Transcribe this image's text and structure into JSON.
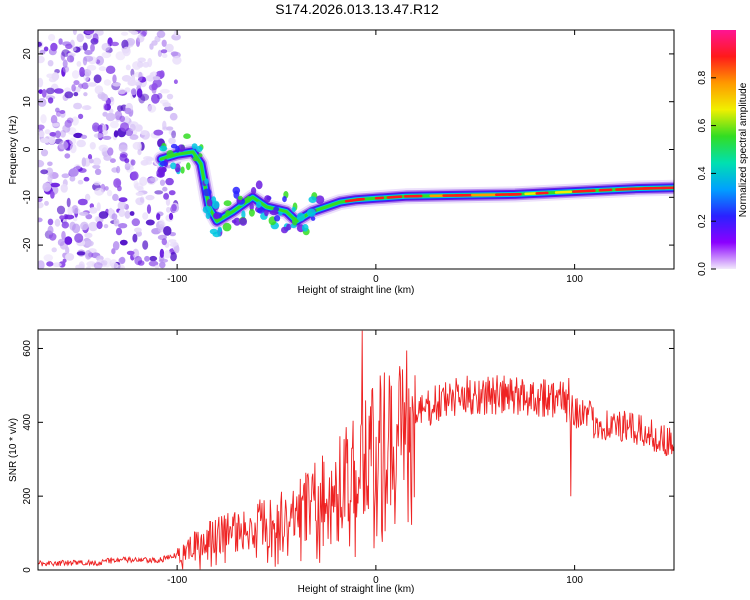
{
  "title": "S174.2026.013.13.47.R12",
  "chart_data": [
    {
      "type": "heatmap",
      "name": "spectrogram",
      "xlabel": "Height of straight line (km)",
      "ylabel": "Frequency (Hz)",
      "xlim": [
        -170,
        150
      ],
      "ylim": [
        -25,
        25
      ],
      "xticks": [
        -100,
        0,
        100
      ],
      "yticks": [
        -20,
        -10,
        0,
        10,
        20
      ],
      "colorbar": {
        "label": "Normalized spectral amplitude",
        "range": [
          0,
          1
        ],
        "ticks": [
          0.0,
          0.2,
          0.4,
          0.6,
          0.8
        ],
        "tick_labels": [
          "0.0",
          "0.2",
          "0.4",
          "0.6",
          "0.8"
        ],
        "colors": [
          "#f2e9fb",
          "#8b00ff",
          "#2a22ff",
          "#00a0ff",
          "#00e0b0",
          "#33dd22",
          "#f0f000",
          "#ff9900",
          "#ff1a1a",
          "#ff1493"
        ]
      },
      "noise_region_x": [
        -170,
        -105
      ],
      "ridge": [
        {
          "x": -108,
          "y": -2
        },
        {
          "x": -100,
          "y": -1
        },
        {
          "x": -92,
          "y": -0.5
        },
        {
          "x": -88,
          "y": -3
        },
        {
          "x": -84,
          "y": -12
        },
        {
          "x": -80,
          "y": -15
        },
        {
          "x": -72,
          "y": -13
        },
        {
          "x": -62,
          "y": -10
        },
        {
          "x": -55,
          "y": -12
        },
        {
          "x": -45,
          "y": -13
        },
        {
          "x": -40,
          "y": -15
        },
        {
          "x": -32,
          "y": -13
        },
        {
          "x": -25,
          "y": -12
        },
        {
          "x": -18,
          "y": -11
        },
        {
          "x": -10,
          "y": -10.5
        },
        {
          "x": 0,
          "y": -10.2
        },
        {
          "x": 15,
          "y": -9.8
        },
        {
          "x": 40,
          "y": -9.6
        },
        {
          "x": 70,
          "y": -9.4
        },
        {
          "x": 90,
          "y": -9.0
        },
        {
          "x": 110,
          "y": -8.6
        },
        {
          "x": 130,
          "y": -8.2
        },
        {
          "x": 150,
          "y": -8.0
        }
      ]
    },
    {
      "type": "line",
      "name": "snr",
      "xlabel": "Height of straight line (km)",
      "ylabel": "SNR (10 * v/v)",
      "xlim": [
        -170,
        150
      ],
      "ylim": [
        0,
        650
      ],
      "xticks": [
        -100,
        0,
        100
      ],
      "yticks": [
        0,
        200,
        400,
        600
      ],
      "color": "#ee2222",
      "envelope": [
        {
          "x": -170,
          "y": 18
        },
        {
          "x": -140,
          "y": 20
        },
        {
          "x": -130,
          "y": 28
        },
        {
          "x": -110,
          "y": 25
        },
        {
          "x": -100,
          "y": 40
        },
        {
          "x": -90,
          "y": 75
        },
        {
          "x": -80,
          "y": 95
        },
        {
          "x": -60,
          "y": 120
        },
        {
          "x": -40,
          "y": 160
        },
        {
          "x": -30,
          "y": 190
        },
        {
          "x": -20,
          "y": 230
        },
        {
          "x": -10,
          "y": 270
        },
        {
          "x": 0,
          "y": 330
        },
        {
          "x": 10,
          "y": 380
        },
        {
          "x": 20,
          "y": 420
        },
        {
          "x": 35,
          "y": 460
        },
        {
          "x": 50,
          "y": 475
        },
        {
          "x": 70,
          "y": 470
        },
        {
          "x": 85,
          "y": 470
        },
        {
          "x": 95,
          "y": 455
        },
        {
          "x": 110,
          "y": 400
        },
        {
          "x": 130,
          "y": 380
        },
        {
          "x": 150,
          "y": 345
        }
      ],
      "spikes": [
        {
          "x": -7,
          "y": 648
        },
        {
          "x": -12,
          "y": 330
        },
        {
          "x": -20,
          "y": 240
        },
        {
          "x": 97,
          "y": 520
        },
        {
          "x": 98,
          "y": 200
        }
      ]
    }
  ]
}
